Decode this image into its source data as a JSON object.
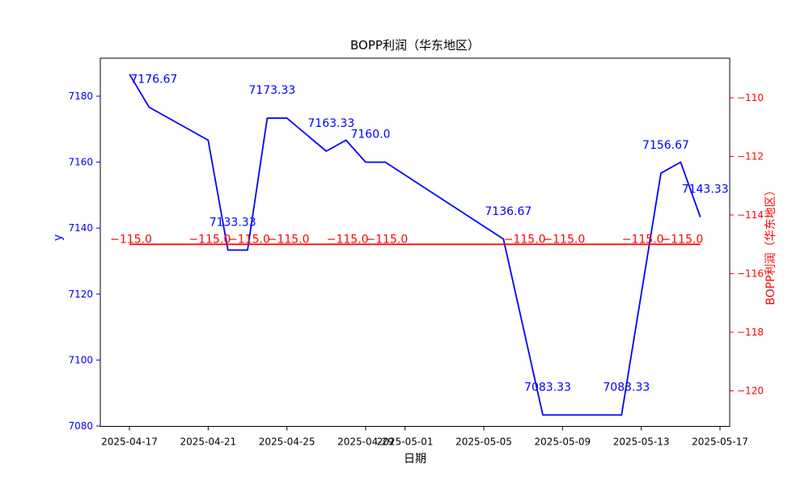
{
  "chart_data": {
    "type": "line",
    "title": "BOPP利润（华东地区）",
    "xlabel": "日期",
    "ylabel_left": "y",
    "ylabel_right": "BOPP利润（华东地区）",
    "x_start_date": "2025-04-17",
    "x_tick_labels": [
      "2025-04-17",
      "2025-04-21",
      "2025-04-25",
      "2025-04-29",
      "2025-05-01",
      "2025-05-05",
      "2025-05-09",
      "2025-05-13",
      "2025-05-17"
    ],
    "left_axis": {
      "color": "#0000ff",
      "ticks": [
        7180,
        7160,
        7140,
        7120,
        7100,
        7080
      ],
      "approx_range": [
        7080,
        7191.5
      ]
    },
    "right_axis": {
      "color": "#ff0000",
      "ticks": [
        -110,
        -112,
        -114,
        -116,
        -118,
        -120
      ],
      "approx_range": [
        -121.2,
        -108.7
      ]
    },
    "grid": false,
    "legend": false,
    "series": [
      {
        "name": "y",
        "axis": "left",
        "color": "#0000ff",
        "points": [
          {
            "date": "2025-04-17",
            "value": 7186.67
          },
          {
            "date": "2025-04-18",
            "value": 7176.67,
            "label": "7176.67"
          },
          {
            "date": "2025-04-21",
            "value": 7166.67
          },
          {
            "date": "2025-04-22",
            "value": 7133.33,
            "label": "7133.33"
          },
          {
            "date": "2025-04-23",
            "value": 7133.33
          },
          {
            "date": "2025-04-24",
            "value": 7173.33,
            "label": "7173.33"
          },
          {
            "date": "2025-04-25",
            "value": 7173.33
          },
          {
            "date": "2025-04-27",
            "value": 7163.33,
            "label": "7163.33"
          },
          {
            "date": "2025-04-28",
            "value": 7166.67
          },
          {
            "date": "2025-04-29",
            "value": 7160.0,
            "label": "7160.0"
          },
          {
            "date": "2025-04-30",
            "value": 7160.0
          },
          {
            "date": "2025-05-06",
            "value": 7136.67,
            "label": "7136.67"
          },
          {
            "date": "2025-05-08",
            "value": 7083.33,
            "label": "7083.33"
          },
          {
            "date": "2025-05-12",
            "value": 7083.33,
            "label": "7083.33"
          },
          {
            "date": "2025-05-14",
            "value": 7156.67,
            "label": "7156.67"
          },
          {
            "date": "2025-05-15",
            "value": 7160.0
          },
          {
            "date": "2025-05-16",
            "value": 7143.33,
            "label": "7143.33"
          }
        ]
      },
      {
        "name": "BOPP利润（华东地区）",
        "axis": "right",
        "color": "#ff0000",
        "constant_value": -115.0,
        "start_date": "2025-04-17",
        "end_date": "2025-05-16",
        "point_labels": [
          {
            "date": "2025-04-17",
            "text": "−115.0"
          },
          {
            "date": "2025-04-21",
            "text": "−115.0"
          },
          {
            "date": "2025-04-23",
            "text": "−115.0"
          },
          {
            "date": "2025-04-25",
            "text": "−115.0"
          },
          {
            "date": "2025-04-28",
            "text": "−115.0"
          },
          {
            "date": "2025-04-30",
            "text": "−115.0"
          },
          {
            "date": "2025-05-07",
            "text": "−115.0"
          },
          {
            "date": "2025-05-09",
            "text": "−115.0"
          },
          {
            "date": "2025-05-13",
            "text": "−115.0"
          },
          {
            "date": "2025-05-15",
            "text": "−115.0"
          }
        ]
      }
    ]
  }
}
